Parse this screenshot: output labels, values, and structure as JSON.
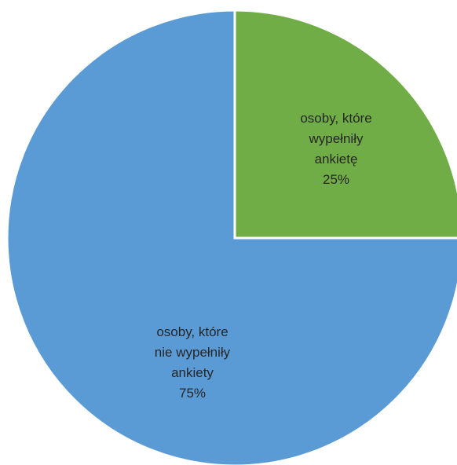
{
  "chart_data": {
    "type": "pie",
    "start_angle_deg": 0,
    "direction": "clockwise",
    "legend": "none",
    "slices": [
      {
        "label_lines": [
          "osoby, które",
          "wypełniły",
          "ankietę",
          "25%"
        ],
        "value": 25,
        "color": "#70AD47"
      },
      {
        "label_lines": [
          "osoby, które",
          "nie wypełniły",
          "ankiety",
          "75%"
        ],
        "value": 75,
        "color": "#5B9BD5"
      }
    ]
  }
}
